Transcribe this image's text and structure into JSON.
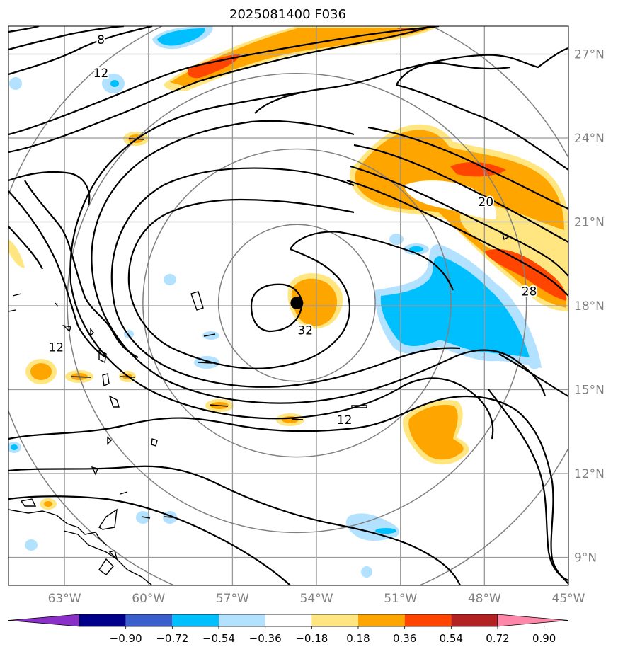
{
  "title": "2025081400 F036",
  "map": {
    "lon_range": [
      -65,
      -45
    ],
    "lat_range": [
      8,
      28
    ],
    "storm_center": {
      "lon": -54.7,
      "lat": 18.1
    },
    "range_ring_radii_deg": [
      2.8,
      5.5,
      8.2,
      11.0
    ],
    "lon_ticks": [
      {
        "value": -63,
        "label": "63°W"
      },
      {
        "value": -60,
        "label": "60°W"
      },
      {
        "value": -57,
        "label": "57°W"
      },
      {
        "value": -54,
        "label": "54°W"
      },
      {
        "value": -51,
        "label": "51°W"
      },
      {
        "value": -48,
        "label": "48°W"
      },
      {
        "value": -45,
        "label": "45°W"
      }
    ],
    "lat_ticks": [
      {
        "value": 27,
        "label": "27°N"
      },
      {
        "value": 24,
        "label": "24°N"
      },
      {
        "value": 21,
        "label": "21°N"
      },
      {
        "value": 18,
        "label": "18°N"
      },
      {
        "value": 15,
        "label": "15°N"
      },
      {
        "value": 12,
        "label": "12°N"
      },
      {
        "value": 9,
        "label": "9°N"
      }
    ],
    "contour_labels": [
      {
        "text": "8",
        "lon": -61.7,
        "lat": 27.5
      },
      {
        "text": "12",
        "lon": -61.7,
        "lat": 26.3
      },
      {
        "text": "20",
        "lon": -47.95,
        "lat": 21.7
      },
      {
        "text": "28",
        "lon": -46.4,
        "lat": 18.5
      },
      {
        "text": "32",
        "lon": -54.4,
        "lat": 17.1
      },
      {
        "text": "12",
        "lon": -63.3,
        "lat": 16.5
      },
      {
        "text": "12",
        "lon": -53.0,
        "lat": 13.9
      }
    ]
  },
  "colorbar": {
    "boundaries": [
      -1.08,
      -0.9,
      -0.72,
      -0.54,
      -0.36,
      -0.18,
      0.18,
      0.36,
      0.54,
      0.72,
      0.9,
      1.08
    ],
    "colors": [
      "#8b2fc9",
      "#00008b",
      "#3a5fcd",
      "#00bfff",
      "#b2e2ff",
      "#ffffff",
      "#ffe680",
      "#ffa500",
      "#ff4500",
      "#b22222",
      "#ff88aa"
    ],
    "tick_labels": [
      "−0.90",
      "−0.72",
      "−0.54",
      "−0.36",
      "−0.18",
      "0.18",
      "0.36",
      "0.54",
      "0.72",
      "0.90"
    ]
  }
}
